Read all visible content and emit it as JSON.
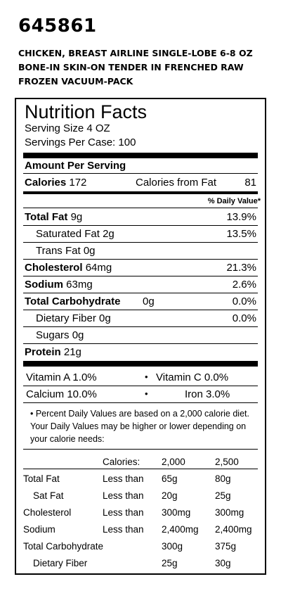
{
  "product": {
    "code": "645861",
    "description_lines": [
      "CHICKEN, BREAST AIRLINE SINGLE-LOBE 6-8 OZ",
      "BONE-IN SKIN-ON TENDER IN FRENCHED RAW",
      "FROZEN VACUUM-PACK"
    ]
  },
  "label": {
    "title": "Nutrition Facts",
    "serving_size": "Serving Size 4 OZ",
    "servings_per_case": "Servings Per Case: 100",
    "amount_per_serving": "Amount Per Serving",
    "calories_label": "Calories",
    "calories_value": "172",
    "calories_from_fat_label": "Calories from Fat",
    "calories_from_fat_value": "81",
    "dv_header": "% Daily Value*",
    "nutrients": [
      {
        "name": "Total Fat",
        "amount": "9g",
        "dv": "13.9%"
      },
      {
        "name": "Saturated Fat",
        "amount": "2g",
        "dv": "13.5%"
      },
      {
        "name": "Trans Fat",
        "amount": "0g",
        "dv": ""
      },
      {
        "name": "Cholesterol",
        "amount": "64mg",
        "dv": "21.3%"
      },
      {
        "name": "Sodium",
        "amount": "63mg",
        "dv": "2.6%"
      },
      {
        "name": "Total Carbohydrate",
        "amount": "0g",
        "dv": "0.0%"
      },
      {
        "name": "Dietary Fiber",
        "amount": "0g",
        "dv": "0.0%"
      },
      {
        "name": "Sugars",
        "amount": "0g",
        "dv": ""
      },
      {
        "name": "Protein",
        "amount": "21g",
        "dv": ""
      }
    ],
    "vitamins": {
      "vitamin_a": "Vitamin A  1.0%",
      "vitamin_c": "Vitamin C 0.0%",
      "calcium": "Calcium   10.0%",
      "iron": "Iron 3.0%",
      "bullet": "•"
    },
    "footnote": "• Percent Daily Values are based on a 2,000 calorie diet. Your Daily Values may be higher or lower depending on your calorie needs:",
    "dv_table": {
      "calories_label": "Calories:",
      "col1": "2,000",
      "col2": "2,500",
      "rows": [
        {
          "name": "Total Fat",
          "limit": "Less than",
          "v1": "65g",
          "v2": "80g"
        },
        {
          "name": "Sat Fat",
          "limit": "Less than",
          "v1": "20g",
          "v2": "25g"
        },
        {
          "name": "Cholesterol",
          "limit": "Less than",
          "v1": "300mg",
          "v2": "300mg"
        },
        {
          "name": "Sodium",
          "limit": "Less than",
          "v1": "2,400mg",
          "v2": "2,400mg"
        },
        {
          "name": "Total Carbohydrate",
          "limit": "",
          "v1": "300g",
          "v2": "375g"
        },
        {
          "name": "Dietary Fiber",
          "limit": "",
          "v1": "25g",
          "v2": "30g"
        }
      ]
    }
  }
}
